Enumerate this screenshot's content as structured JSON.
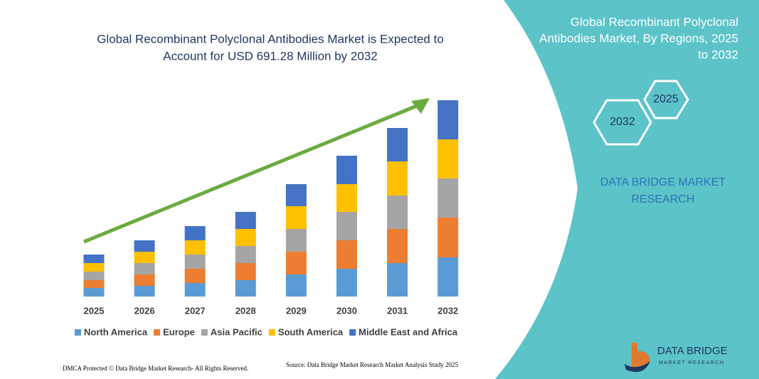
{
  "chart_data": {
    "type": "stacked_bar",
    "title": [
      "Global Recombinant Polyclonal Antibodies Market is Expected to",
      "Account for USD 691.28 Million by 2032"
    ],
    "categories": [
      "2025",
      "2026",
      "2027",
      "2028",
      "2029",
      "2030",
      "2031",
      "2032"
    ],
    "series": [
      {
        "name": "North America",
        "color": "#5b9bd5",
        "values": [
          30,
          37.5,
          47.5,
          57.5,
          77.5,
          97.5,
          117.5,
          137.5
        ]
      },
      {
        "name": "Europe",
        "color": "#ed7d31",
        "values": [
          27.5,
          40,
          50,
          60,
          80,
          100,
          120,
          140
        ]
      },
      {
        "name": "Asia Pacific",
        "color": "#a5a5a5",
        "values": [
          30,
          40,
          50,
          60,
          80,
          100,
          117.5,
          137.5
        ]
      },
      {
        "name": "South America",
        "color": "#ffc000",
        "values": [
          30,
          40,
          50,
          60,
          80,
          97.5,
          120,
          137.5
        ]
      },
      {
        "name": "Middle East and Africa",
        "color": "#4472c4",
        "values": [
          30,
          40,
          50,
          60,
          77.5,
          100,
          117.5,
          137.5
        ]
      }
    ],
    "ylim": [
      0,
      700
    ],
    "legend": "bottom"
  },
  "panel": {
    "title": [
      "Global Recombinant Polyclonal",
      "Antibodies Market, By Regions, 2025",
      "to 2032"
    ],
    "hex_small": "2025",
    "hex_large": "2032",
    "brand": [
      "DATA BRIDGE MARKET",
      "RESEARCH"
    ]
  },
  "footer": {
    "dmca": "DMCA Protected © Data Bridge Market Research- All Rights Reserved.",
    "source": "Source: Data Bridge Market Research Market Analysis Study 2025",
    "logo": "DATA BRIDGE",
    "logo_sub": "MARKET RESEARCH"
  }
}
